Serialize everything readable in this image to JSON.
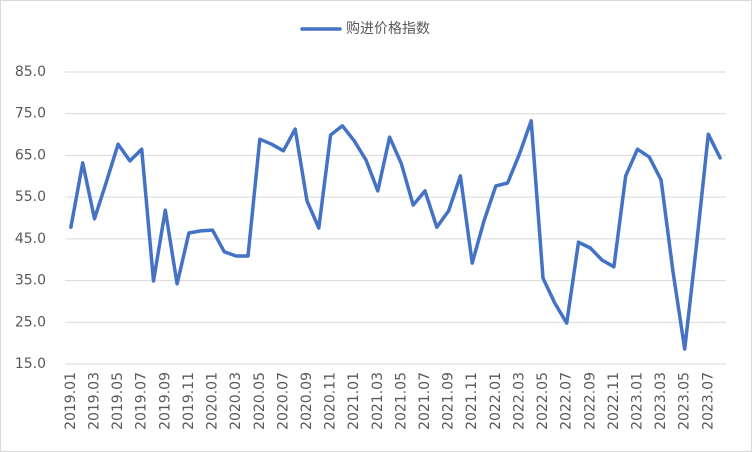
{
  "chart_data": {
    "type": "line",
    "categories": [
      "2019.01",
      null,
      "2019.03",
      null,
      "2019.05",
      null,
      "2019.07",
      null,
      "2019.09",
      null,
      "2019.11",
      null,
      "2020.01",
      null,
      "2020.03",
      null,
      "2020.05",
      null,
      "2020.07",
      null,
      "2020.09",
      null,
      "2020.11",
      null,
      "2021.01",
      null,
      "2021.03",
      null,
      "2021.05",
      null,
      "2021.07",
      null,
      "2021.09",
      null,
      "2021.11",
      null,
      "2022.01",
      null,
      "2022.03",
      null,
      "2022.05",
      null,
      "2022.07",
      null,
      "2022.09",
      null,
      "2022.11",
      null,
      "2023.01",
      null,
      "2023.03",
      null,
      "2023.05",
      null,
      "2023.07",
      null
    ],
    "series": [
      {
        "name": "购进价格指数",
        "color": "#4472c4",
        "values": [
          47.8,
          63.2,
          49.8,
          58.6,
          67.7,
          63.7,
          66.5,
          34.9,
          51.9,
          34.2,
          46.4,
          46.9,
          47.1,
          41.9,
          40.9,
          40.9,
          68.9,
          67.7,
          66.1,
          71.3,
          54.1,
          47.6,
          69.9,
          72.1,
          68.5,
          63.9,
          56.5,
          69.4,
          63.0,
          53.1,
          56.5,
          47.8,
          51.7,
          60.1,
          39.2,
          49.3,
          57.7,
          58.4,
          65.3,
          73.3,
          35.6,
          29.6,
          24.8,
          44.2,
          42.8,
          39.9,
          38.3,
          60.1,
          66.5,
          64.6,
          59.1,
          37.3,
          18.6,
          43.5,
          70.1,
          64.4
        ]
      }
    ],
    "ylim": [
      15,
      85
    ],
    "yticks": [
      {
        "value": 15,
        "label": "15.0"
      },
      {
        "value": 25,
        "label": "25.0"
      },
      {
        "value": 35,
        "label": "35.0"
      },
      {
        "value": 45,
        "label": "45.0"
      },
      {
        "value": 55,
        "label": "55.0"
      },
      {
        "value": 65,
        "label": "65.0"
      },
      {
        "value": 75,
        "label": "75.0"
      },
      {
        "value": 85,
        "label": "85.0"
      }
    ],
    "grid": true,
    "legend": "top"
  }
}
